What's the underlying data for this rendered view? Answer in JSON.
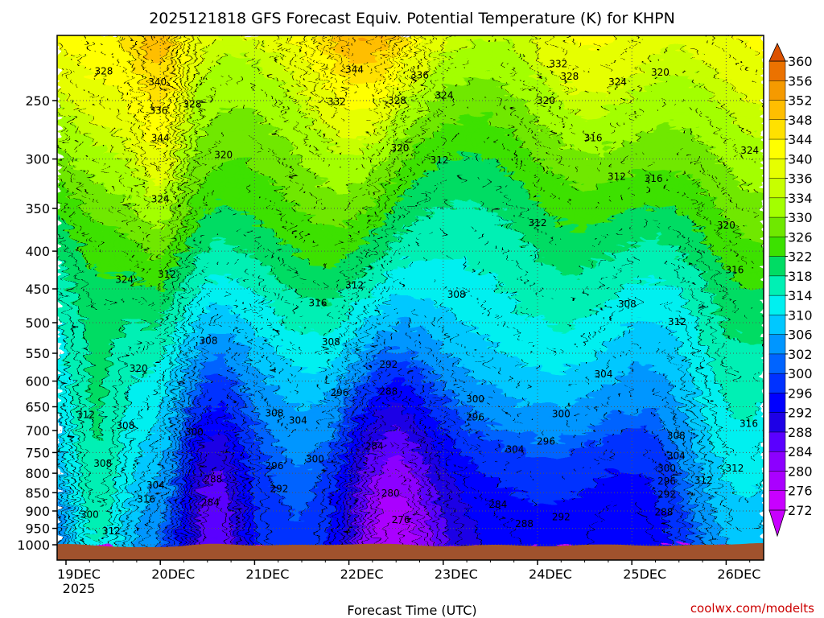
{
  "chart_data": {
    "type": "heatmap",
    "title": "2025121818 GFS Forecast Equiv. Potential Temperature (K) for KHPN",
    "xlabel": "Forecast Time (UTC)",
    "ylabel": "",
    "x_ticks": [
      "19DEC",
      "20DEC",
      "21DEC",
      "22DEC",
      "23DEC",
      "24DEC",
      "25DEC",
      "26DEC"
    ],
    "x_year": "2025",
    "y_ticks": [
      "250",
      "300",
      "350",
      "400",
      "450",
      "500",
      "550",
      "600",
      "650",
      "700",
      "750",
      "800",
      "850",
      "900",
      "950",
      "1000"
    ],
    "y_scale": "log-pressure",
    "ylim": [
      1010,
      200
    ],
    "colorbar": {
      "levels": [
        360,
        356,
        352,
        348,
        344,
        340,
        336,
        334,
        330,
        326,
        322,
        318,
        314,
        310,
        306,
        302,
        300,
        296,
        292,
        288,
        284,
        280,
        276,
        272
      ],
      "colors": [
        "#dc5200",
        "#eb7200",
        "#f59a00",
        "#ffbe00",
        "#ffe100",
        "#ffff00",
        "#e6ff00",
        "#c7ff00",
        "#a3ff00",
        "#6fe800",
        "#3ce100",
        "#00dc64",
        "#00f0b4",
        "#00f0f0",
        "#00c8ff",
        "#0096ff",
        "#0064ff",
        "#0032ff",
        "#0000ff",
        "#1e00e6",
        "#5a00ff",
        "#8c00ff",
        "#aa00ff",
        "#c800ff"
      ]
    },
    "contour_labels": [
      {
        "text": "328",
        "x": 0.4,
        "p": 228
      },
      {
        "text": "340",
        "x": 0.97,
        "p": 236
      },
      {
        "text": "336",
        "x": 0.98,
        "p": 258
      },
      {
        "text": "344",
        "x": 1.0,
        "p": 281
      },
      {
        "text": "328",
        "x": 1.34,
        "p": 253
      },
      {
        "text": "320",
        "x": 1.67,
        "p": 296
      },
      {
        "text": "324",
        "x": 1.0,
        "p": 340
      },
      {
        "text": "324",
        "x": 0.62,
        "p": 437
      },
      {
        "text": "312",
        "x": 1.07,
        "p": 430
      },
      {
        "text": "320",
        "x": 0.77,
        "p": 577
      },
      {
        "text": "308",
        "x": 1.51,
        "p": 529
      },
      {
        "text": "312",
        "x": 0.21,
        "p": 667
      },
      {
        "text": "308",
        "x": 0.63,
        "p": 690
      },
      {
        "text": "308",
        "x": 0.39,
        "p": 776
      },
      {
        "text": "304",
        "x": 0.95,
        "p": 830
      },
      {
        "text": "316",
        "x": 0.85,
        "p": 868
      },
      {
        "text": "300",
        "x": 0.25,
        "p": 910
      },
      {
        "text": "312",
        "x": 0.48,
        "p": 958
      },
      {
        "text": "300",
        "x": 1.36,
        "p": 704
      },
      {
        "text": "288",
        "x": 1.56,
        "p": 815
      },
      {
        "text": "284",
        "x": 1.53,
        "p": 876
      },
      {
        "text": "308",
        "x": 2.21,
        "p": 663
      },
      {
        "text": "304",
        "x": 2.46,
        "p": 678
      },
      {
        "text": "296",
        "x": 2.21,
        "p": 782
      },
      {
        "text": "300",
        "x": 2.64,
        "p": 765
      },
      {
        "text": "292",
        "x": 2.26,
        "p": 840
      },
      {
        "text": "316",
        "x": 2.67,
        "p": 470
      },
      {
        "text": "308",
        "x": 2.81,
        "p": 531
      },
      {
        "text": "312",
        "x": 3.06,
        "p": 445
      },
      {
        "text": "344",
        "x": 3.06,
        "p": 227
      },
      {
        "text": "332",
        "x": 2.87,
        "p": 251
      },
      {
        "text": "328",
        "x": 3.51,
        "p": 250
      },
      {
        "text": "336",
        "x": 3.75,
        "p": 231
      },
      {
        "text": "324",
        "x": 4.01,
        "p": 246
      },
      {
        "text": "320",
        "x": 3.54,
        "p": 290
      },
      {
        "text": "312",
        "x": 3.96,
        "p": 301
      },
      {
        "text": "308",
        "x": 4.14,
        "p": 458
      },
      {
        "text": "292",
        "x": 3.42,
        "p": 570
      },
      {
        "text": "288",
        "x": 3.42,
        "p": 620
      },
      {
        "text": "296",
        "x": 2.9,
        "p": 622
      },
      {
        "text": "300",
        "x": 4.34,
        "p": 635
      },
      {
        "text": "296",
        "x": 4.34,
        "p": 672
      },
      {
        "text": "284",
        "x": 3.27,
        "p": 735
      },
      {
        "text": "280",
        "x": 3.44,
        "p": 852
      },
      {
        "text": "276",
        "x": 3.55,
        "p": 925
      },
      {
        "text": "284",
        "x": 4.58,
        "p": 882
      },
      {
        "text": "304",
        "x": 4.76,
        "p": 743
      },
      {
        "text": "288",
        "x": 4.86,
        "p": 937
      },
      {
        "text": "292",
        "x": 5.25,
        "p": 917
      },
      {
        "text": "296",
        "x": 5.09,
        "p": 724
      },
      {
        "text": "300",
        "x": 5.25,
        "p": 665
      },
      {
        "text": "304",
        "x": 5.7,
        "p": 587
      },
      {
        "text": "312",
        "x": 5.0,
        "p": 366
      },
      {
        "text": "320",
        "x": 5.09,
        "p": 250
      },
      {
        "text": "332",
        "x": 5.22,
        "p": 223
      },
      {
        "text": "328",
        "x": 5.34,
        "p": 232
      },
      {
        "text": "316",
        "x": 5.59,
        "p": 281
      },
      {
        "text": "324",
        "x": 5.85,
        "p": 236
      },
      {
        "text": "312",
        "x": 5.84,
        "p": 317
      },
      {
        "text": "308",
        "x": 5.95,
        "p": 472
      },
      {
        "text": "320",
        "x": 6.3,
        "p": 229
      },
      {
        "text": "316",
        "x": 6.23,
        "p": 319
      },
      {
        "text": "312",
        "x": 6.48,
        "p": 499
      },
      {
        "text": "320",
        "x": 7.0,
        "p": 369
      },
      {
        "text": "316",
        "x": 7.09,
        "p": 424
      },
      {
        "text": "324",
        "x": 7.25,
        "p": 292
      },
      {
        "text": "308",
        "x": 6.47,
        "p": 712
      },
      {
        "text": "304",
        "x": 6.47,
        "p": 758
      },
      {
        "text": "300",
        "x": 6.37,
        "p": 788
      },
      {
        "text": "296",
        "x": 6.37,
        "p": 820
      },
      {
        "text": "292",
        "x": 6.37,
        "p": 855
      },
      {
        "text": "288",
        "x": 6.34,
        "p": 903
      },
      {
        "text": "312",
        "x": 6.76,
        "p": 818
      },
      {
        "text": "312",
        "x": 7.09,
        "p": 788
      },
      {
        "text": "316",
        "x": 7.24,
        "p": 685
      }
    ]
  },
  "credit": "coolwx.com/modelts"
}
